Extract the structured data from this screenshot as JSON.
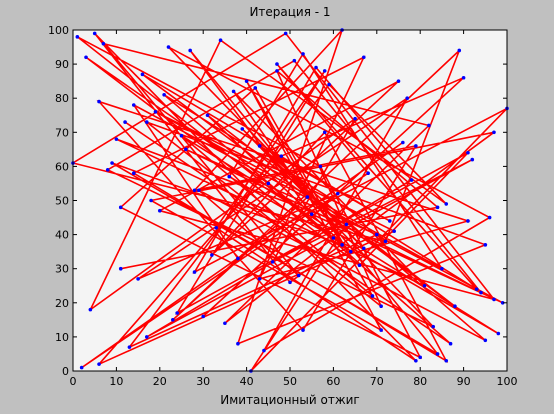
{
  "chart_data": {
    "type": "line",
    "title": "Итерация - 1",
    "x_label": "Имитационный отжиг",
    "xlim": [
      0,
      100
    ],
    "ylim": [
      0,
      100
    ],
    "xticks": [
      0,
      10,
      20,
      30,
      40,
      50,
      60,
      70,
      80,
      90,
      100
    ],
    "yticks": [
      0,
      10,
      20,
      30,
      40,
      50,
      60,
      70,
      80,
      90,
      100
    ],
    "series": [
      {
        "color": "#ff0000",
        "marker_color": "#0000ff",
        "x": [
          12,
          87,
          45,
          3,
          66,
          91,
          24,
          58,
          33,
          79,
          5,
          50,
          97,
          18,
          71,
          40,
          62,
          9,
          84,
          27,
          55,
          99,
          14,
          38,
          76,
          2,
          68,
          47,
          93,
          21,
          60,
          35,
          82,
          7,
          52,
          29,
          95,
          43,
          73,
          16,
          88,
          31,
          64,
          1,
          57,
          80,
          11,
          42,
          69,
          25,
          98,
          36,
          53,
          85,
          19,
          74,
          6,
          48,
          90,
          30,
          61,
          15,
          77,
          44,
          96,
          22,
          67,
          39,
          83,
          8,
          51,
          94,
          26,
          70,
          13,
          59,
          86,
          34,
          4,
          65,
          46,
          92,
          17,
          78,
          56,
          28,
          100,
          41,
          63,
          10,
          81,
          37,
          54,
          23,
          89,
          72,
          0,
          49,
          97,
          20,
          75,
          32,
          58,
          86,
          14,
          67,
          43,
          91,
          6,
          53,
          79,
          28,
          62,
          38,
          95,
          17,
          71,
          47,
          84,
          11
        ],
        "values": [
          73,
          8,
          55,
          92,
          31,
          64,
          17,
          88,
          42,
          3,
          99,
          26,
          70,
          50,
          12,
          85,
          37,
          61,
          5,
          94,
          46,
          20,
          78,
          33,
          67,
          1,
          58,
          90,
          24,
          81,
          39,
          14,
          72,
          96,
          28,
          53,
          9,
          66,
          44,
          87,
          19,
          75,
          35,
          98,
          60,
          4,
          48,
          83,
          22,
          69,
          11,
          57,
          93,
          30,
          76,
          41,
          2,
          63,
          86,
          16,
          52,
          27,
          80,
          6,
          45,
          95,
          36,
          71,
          13,
          59,
          91,
          23,
          65,
          40,
          7,
          84,
          49,
          97,
          18,
          74,
          32,
          62,
          10,
          56,
          89,
          29,
          77,
          0,
          43,
          68,
          25,
          82,
          51,
          15,
          94,
          38,
          61,
          99,
          21,
          47,
          85,
          34,
          70,
          3,
          58,
          92,
          27,
          44,
          79,
          12,
          66,
          53,
          100,
          8,
          37,
          73,
          19,
          88,
          48,
          30
        ]
      }
    ]
  }
}
